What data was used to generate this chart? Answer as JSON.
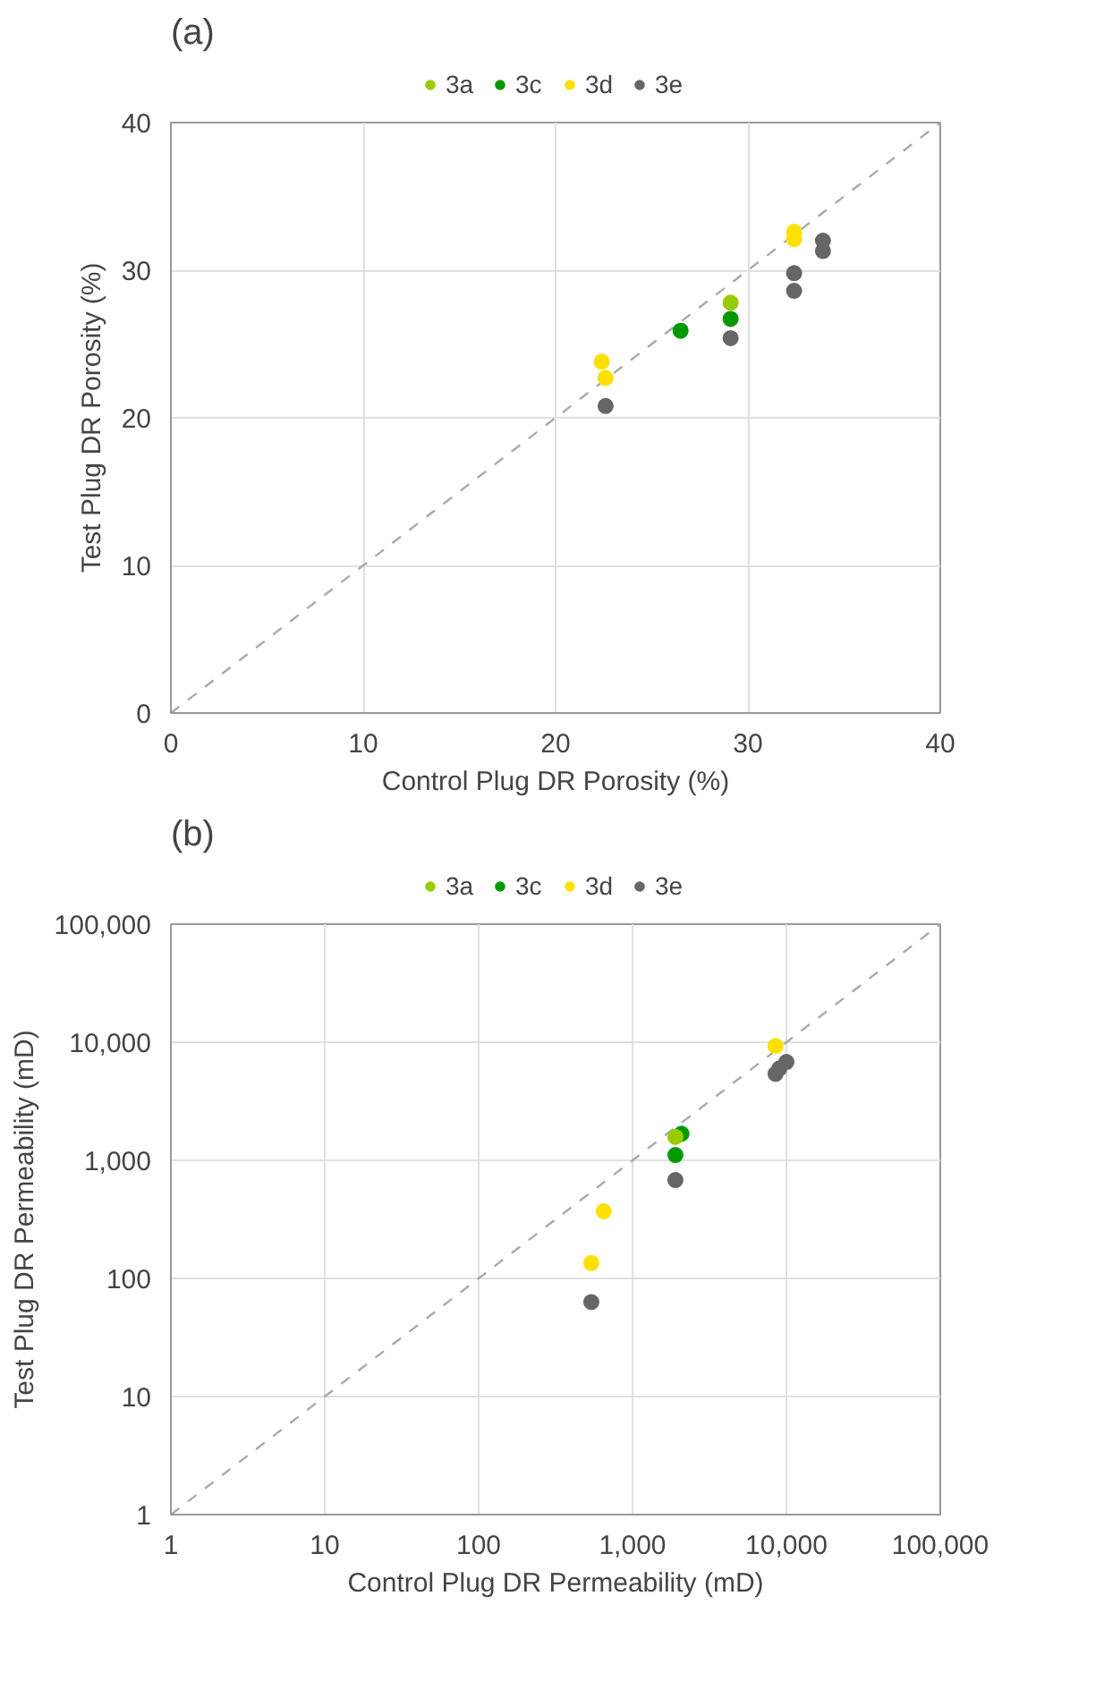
{
  "chart_data": [
    {
      "type": "scatter",
      "title": "(a)",
      "xlabel": "Control Plug DR Porosity (%)",
      "ylabel": "Test Plug DR Porosity (%)",
      "xlim": [
        0,
        40
      ],
      "ylim": [
        0,
        40
      ],
      "xticks": [
        0,
        10,
        20,
        30,
        40
      ],
      "yticks": [
        0,
        10,
        20,
        30,
        40
      ],
      "grid": true,
      "legend": "top",
      "marker": "circle",
      "series": [
        {
          "name": "3a",
          "color": "#99cc00",
          "x": [
            29.1
          ],
          "values": [
            27.8
          ]
        },
        {
          "name": "3c",
          "color": "#009900",
          "x": [
            26.5,
            29.1
          ],
          "values": [
            25.9,
            26.7
          ]
        },
        {
          "name": "3d",
          "color": "#ffe000",
          "x": [
            32.4,
            32.4,
            22.4,
            22.6
          ],
          "values": [
            32.6,
            32.1,
            23.8,
            22.7
          ]
        },
        {
          "name": "3e",
          "color": "#666666",
          "x": [
            22.6,
            29.1,
            32.4,
            32.4,
            33.9,
            33.9
          ],
          "values": [
            20.8,
            25.4,
            29.8,
            28.6,
            32.0,
            31.3
          ]
        },
        {
          "type": "line",
          "marker": "none",
          "line_style": "dashed",
          "color": "#aaaaaa",
          "x": [
            0,
            40
          ],
          "values": [
            0,
            40
          ]
        }
      ]
    },
    {
      "type": "scatter",
      "title": "(b)",
      "xlabel": "Control Plug DR Permeability (mD)",
      "ylabel": "Test Plug DR Permeability (mD)",
      "log": "xy",
      "xlim": [
        1,
        100000
      ],
      "ylim": [
        1,
        100000
      ],
      "xticks": [
        1,
        10,
        100,
        {
          "value": 1000,
          "label": "1,000"
        },
        {
          "value": 10000,
          "label": "10,000"
        },
        {
          "value": 100000,
          "label": "100,000"
        }
      ],
      "yticks": [
        1,
        10,
        100,
        {
          "value": 1000,
          "label": "1,000"
        },
        {
          "value": 10000,
          "label": "10,000"
        },
        {
          "value": 100000,
          "label": "100,000"
        }
      ],
      "grid": true,
      "legend": "top",
      "marker": "circle",
      "series": [
        {
          "name": "3a",
          "color": "#99cc00",
          "x": [
            1900
          ],
          "values": [
            1580
          ]
        },
        {
          "name": "3c",
          "color": "#009900",
          "x": [
            2080,
            1900
          ],
          "values": [
            1680,
            1110
          ]
        },
        {
          "name": "3d",
          "color": "#ffe000",
          "x": [
            8500,
            650,
            540
          ],
          "values": [
            9300,
            370,
            135
          ]
        },
        {
          "name": "3e",
          "color": "#666666",
          "x": [
            8500,
            9000,
            10000,
            1900,
            540
          ],
          "values": [
            5400,
            6000,
            6800,
            680,
            63
          ]
        },
        {
          "type": "line",
          "marker": "none",
          "line_style": "dashed",
          "color": "#aaaaaa",
          "x": [
            1,
            100000
          ],
          "values": [
            1,
            100000
          ]
        }
      ]
    }
  ]
}
